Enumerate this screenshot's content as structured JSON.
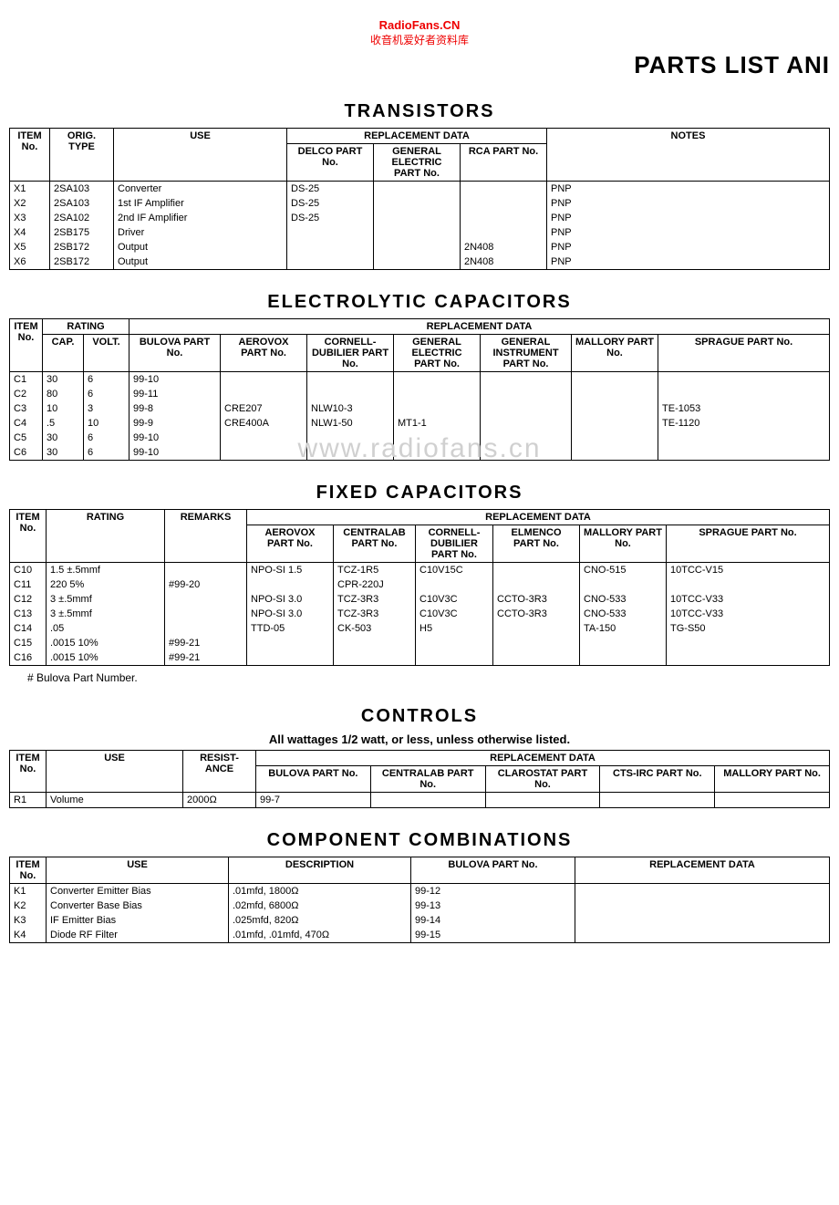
{
  "watermark": {
    "line1": "RadioFans.CN",
    "line2": "收音机爱好者资料库",
    "mid": "www.radiofans.cn"
  },
  "page_title": "PARTS LIST ANI",
  "colors": {
    "wm_red": "#ee0000",
    "border": "#000000",
    "bg": "#ffffff"
  },
  "transistors": {
    "title": "TRANSISTORS",
    "headers": {
      "item": "ITEM No.",
      "orig": "ORIG. TYPE",
      "use": "USE",
      "repl": "REPLACEMENT DATA",
      "delco": "DELCO PART No.",
      "ge": "GENERAL ELECTRIC PART No.",
      "rca": "RCA PART No.",
      "notes": "NOTES"
    },
    "rows": [
      {
        "item": "X1",
        "orig": "2SA103",
        "use": "Converter",
        "delco": "DS-25",
        "ge": "",
        "rca": "",
        "notes": "PNP"
      },
      {
        "item": "X2",
        "orig": "2SA103",
        "use": "1st IF Amplifier",
        "delco": "DS-25",
        "ge": "",
        "rca": "",
        "notes": "PNP"
      },
      {
        "item": "X3",
        "orig": "2SA102",
        "use": "2nd IF Amplifier",
        "delco": "DS-25",
        "ge": "",
        "rca": "",
        "notes": "PNP"
      },
      {
        "item": "X4",
        "orig": "2SB175",
        "use": "Driver",
        "delco": "",
        "ge": "",
        "rca": "",
        "notes": "PNP"
      },
      {
        "item": "X5",
        "orig": "2SB172",
        "use": "Output",
        "delco": "",
        "ge": "",
        "rca": "2N408",
        "notes": "PNP"
      },
      {
        "item": "X6",
        "orig": "2SB172",
        "use": "Output",
        "delco": "",
        "ge": "",
        "rca": "2N408",
        "notes": "PNP"
      }
    ]
  },
  "electrolytic": {
    "title": "ELECTROLYTIC CAPACITORS",
    "headers": {
      "item": "ITEM No.",
      "rating": "RATING",
      "cap": "CAP.",
      "volt": "VOLT.",
      "repl": "REPLACEMENT DATA",
      "bulova": "BULOVA PART No.",
      "aerovox": "AEROVOX PART No.",
      "cd": "CORNELL-DUBILIER PART No.",
      "ge": "GENERAL ELECTRIC PART No.",
      "gi": "GENERAL INSTRUMENT PART No.",
      "mallory": "MALLORY PART No.",
      "sprague": "SPRAGUE PART No."
    },
    "rows": [
      {
        "item": "C1",
        "cap": "30",
        "volt": "6",
        "bulova": "99-10",
        "aerovox": "",
        "cd": "",
        "ge": "",
        "gi": "",
        "mallory": "",
        "sprague": ""
      },
      {
        "item": "C2",
        "cap": "80",
        "volt": "6",
        "bulova": "99-11",
        "aerovox": "",
        "cd": "",
        "ge": "",
        "gi": "",
        "mallory": "",
        "sprague": ""
      },
      {
        "item": "C3",
        "cap": "10",
        "volt": "3",
        "bulova": "99-8",
        "aerovox": "CRE207",
        "cd": "NLW10-3",
        "ge": "",
        "gi": "",
        "mallory": "",
        "sprague": "TE-1053"
      },
      {
        "item": "C4",
        "cap": ".5",
        "volt": "10",
        "bulova": "99-9",
        "aerovox": "CRE400A",
        "cd": "NLW1-50",
        "ge": "MT1-1",
        "gi": "",
        "mallory": "",
        "sprague": "TE-1120"
      },
      {
        "item": "C5",
        "cap": "30",
        "volt": "6",
        "bulova": "99-10",
        "aerovox": "",
        "cd": "",
        "ge": "",
        "gi": "",
        "mallory": "",
        "sprague": ""
      },
      {
        "item": "C6",
        "cap": "30",
        "volt": "6",
        "bulova": "99-10",
        "aerovox": "",
        "cd": "",
        "ge": "",
        "gi": "",
        "mallory": "",
        "sprague": ""
      }
    ]
  },
  "fixed": {
    "title": "FIXED CAPACITORS",
    "headers": {
      "item": "ITEM No.",
      "rating": "RATING",
      "remarks": "REMARKS",
      "repl": "REPLACEMENT DATA",
      "aerovox": "AEROVOX PART No.",
      "centralab": "CENTRALAB PART No.",
      "cd": "CORNELL-DUBILIER PART No.",
      "elmenco": "ELMENCO PART No.",
      "mallory": "MALLORY PART No.",
      "sprague": "SPRAGUE PART No."
    },
    "rows": [
      {
        "item": "C10",
        "rating": "1.5  ±.5mmf",
        "remarks": "",
        "aerovox": "NPO-SI 1.5",
        "centralab": "TCZ-1R5",
        "cd": "C10V15C",
        "elmenco": "",
        "mallory": "CNO-515",
        "sprague": "10TCC-V15"
      },
      {
        "item": "C11",
        "rating": "220  5%",
        "remarks": "#99-20",
        "aerovox": "",
        "centralab": "CPR-220J",
        "cd": "",
        "elmenco": "",
        "mallory": "",
        "sprague": ""
      },
      {
        "item": "C12",
        "rating": "3 ±.5mmf",
        "remarks": "",
        "aerovox": "NPO-SI 3.0",
        "centralab": "TCZ-3R3",
        "cd": "C10V3C",
        "elmenco": "CCTO-3R3",
        "mallory": "CNO-533",
        "sprague": "10TCC-V33"
      },
      {
        "item": "C13",
        "rating": "3 ±.5mmf",
        "remarks": "",
        "aerovox": "NPO-SI 3.0",
        "centralab": "TCZ-3R3",
        "cd": "C10V3C",
        "elmenco": "CCTO-3R3",
        "mallory": "CNO-533",
        "sprague": "10TCC-V33"
      },
      {
        "item": "C14",
        "rating": ".05",
        "remarks": "",
        "aerovox": "TTD-05",
        "centralab": "CK-503",
        "cd": "H5",
        "elmenco": "",
        "mallory": "TA-150",
        "sprague": "TG-S50"
      },
      {
        "item": "C15",
        "rating": ".0015  10%",
        "remarks": "#99-21",
        "aerovox": "",
        "centralab": "",
        "cd": "",
        "elmenco": "",
        "mallory": "",
        "sprague": ""
      },
      {
        "item": "C16",
        "rating": ".0015  10%",
        "remarks": "#99-21",
        "aerovox": "",
        "centralab": "",
        "cd": "",
        "elmenco": "",
        "mallory": "",
        "sprague": ""
      }
    ],
    "footnote": "#  Bulova Part Number."
  },
  "controls": {
    "title": "CONTROLS",
    "subtitle": "All wattages 1/2 watt, or less, unless otherwise listed.",
    "headers": {
      "item": "ITEM No.",
      "use": "USE",
      "resist": "RESIST-ANCE",
      "repl": "REPLACEMENT DATA",
      "bulova": "BULOVA PART No.",
      "centralab": "CENTRALAB PART No.",
      "clarostat": "CLAROSTAT PART No.",
      "cts": "CTS-IRC PART No.",
      "mallory": "MALLORY PART No."
    },
    "rows": [
      {
        "item": "R1",
        "use": "Volume",
        "resist": "2000Ω",
        "bulova": "99-7",
        "centralab": "",
        "clarostat": "",
        "cts": "",
        "mallory": ""
      }
    ]
  },
  "combos": {
    "title": "COMPONENT COMBINATIONS",
    "headers": {
      "item": "ITEM No.",
      "use": "USE",
      "desc": "DESCRIPTION",
      "bulova": "BULOVA PART No.",
      "repl": "REPLACEMENT DATA"
    },
    "rows": [
      {
        "item": "K1",
        "use": "Converter Emitter Bias",
        "desc": ".01mfd, 1800Ω",
        "bulova": "99-12",
        "repl": ""
      },
      {
        "item": "K2",
        "use": "Converter Base Bias",
        "desc": ".02mfd, 6800Ω",
        "bulova": "99-13",
        "repl": ""
      },
      {
        "item": "K3",
        "use": "IF Emitter Bias",
        "desc": ".025mfd, 820Ω",
        "bulova": "99-14",
        "repl": ""
      },
      {
        "item": "K4",
        "use": "Diode RF Filter",
        "desc": ".01mfd, .01mfd, 470Ω",
        "bulova": "99-15",
        "repl": ""
      }
    ]
  }
}
